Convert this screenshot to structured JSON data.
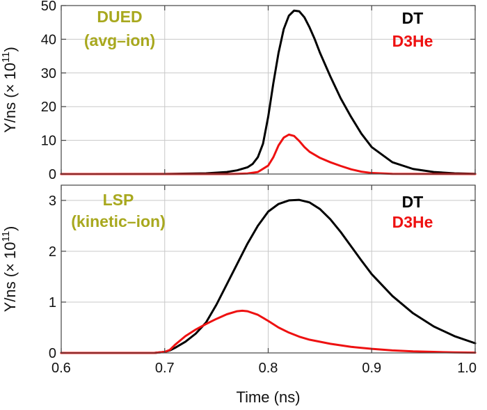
{
  "chart_data": [
    {
      "type": "line",
      "panel": "top",
      "xlabel": "",
      "ylabel": "Y/ns (× 10",
      "ylabel_exp": "11",
      "ylabel_close": ")",
      "xlim": [
        0.6,
        1.0
      ],
      "ylim": [
        0,
        50
      ],
      "xticks": [
        0.6,
        0.7,
        0.8,
        0.9,
        1.0
      ],
      "yticks": [
        0,
        10,
        20,
        30,
        40,
        50
      ],
      "ytick_labels": [
        "0",
        "10",
        "20",
        "30",
        "40",
        "50"
      ],
      "grid": true,
      "annotation": [
        "DUED",
        "(avg–ion)"
      ],
      "annotation_color": "#a8a81e",
      "legend_placement": "top-right",
      "series": [
        {
          "name": "DT",
          "color": "#000000",
          "x": [
            0.6,
            0.7,
            0.74,
            0.76,
            0.77,
            0.78,
            0.785,
            0.79,
            0.795,
            0.8,
            0.805,
            0.81,
            0.815,
            0.82,
            0.825,
            0.83,
            0.835,
            0.84,
            0.845,
            0.85,
            0.86,
            0.87,
            0.88,
            0.89,
            0.9,
            0.92,
            0.94,
            0.96,
            0.98,
            1.0
          ],
          "y": [
            0,
            0.02,
            0.2,
            0.6,
            1.1,
            2.0,
            3.0,
            5.0,
            9.0,
            17.0,
            27.0,
            36.0,
            43.0,
            47.0,
            48.5,
            48.3,
            46.5,
            43.5,
            40.0,
            36.0,
            29.0,
            22.5,
            17.0,
            12.0,
            8.0,
            3.5,
            1.5,
            0.6,
            0.2,
            0.05
          ]
        },
        {
          "name": "D3He",
          "color": "#ee1111",
          "x": [
            0.6,
            0.76,
            0.77,
            0.78,
            0.79,
            0.8,
            0.805,
            0.81,
            0.815,
            0.82,
            0.825,
            0.83,
            0.835,
            0.84,
            0.85,
            0.86,
            0.87,
            0.88,
            0.89,
            0.9,
            0.92,
            1.0
          ],
          "y": [
            0,
            0,
            0.05,
            0.15,
            0.6,
            2.5,
            5.0,
            8.5,
            10.8,
            11.7,
            11.3,
            9.8,
            8.0,
            6.6,
            4.8,
            3.5,
            2.4,
            1.4,
            0.7,
            0.3,
            0.05,
            0
          ]
        }
      ]
    },
    {
      "type": "line",
      "panel": "bottom",
      "xlabel": "Time (ns)",
      "ylabel": "Y/ns (× 10",
      "ylabel_exp": "11",
      "ylabel_close": ")",
      "xlim": [
        0.6,
        1.0
      ],
      "ylim": [
        0,
        3.3
      ],
      "xticks": [
        0.6,
        0.7,
        0.8,
        0.9,
        1.0
      ],
      "xtick_labels": [
        "0.6",
        "0.7",
        "0.8",
        "0.9",
        "1.0"
      ],
      "yticks": [
        0,
        1,
        2,
        3
      ],
      "ytick_labels": [
        "0",
        "1",
        "2",
        "3"
      ],
      "grid": true,
      "annotation": [
        "LSP",
        "(kinetic–ion)"
      ],
      "annotation_color": "#a8a81e",
      "legend_placement": "top-right",
      "series": [
        {
          "name": "DT",
          "color": "#000000",
          "x": [
            0.6,
            0.69,
            0.7,
            0.705,
            0.71,
            0.72,
            0.73,
            0.74,
            0.75,
            0.76,
            0.77,
            0.78,
            0.79,
            0.8,
            0.81,
            0.82,
            0.83,
            0.84,
            0.85,
            0.86,
            0.87,
            0.88,
            0.89,
            0.9,
            0.92,
            0.94,
            0.96,
            0.98,
            1.0
          ],
          "y": [
            0,
            0,
            0.02,
            0.05,
            0.1,
            0.22,
            0.38,
            0.6,
            0.95,
            1.35,
            1.75,
            2.15,
            2.5,
            2.78,
            2.93,
            3.0,
            3.01,
            2.96,
            2.83,
            2.63,
            2.38,
            2.1,
            1.82,
            1.55,
            1.12,
            0.78,
            0.52,
            0.33,
            0.19
          ]
        },
        {
          "name": "D3He",
          "color": "#ee1111",
          "x": [
            0.6,
            0.69,
            0.7,
            0.705,
            0.71,
            0.72,
            0.73,
            0.74,
            0.75,
            0.76,
            0.77,
            0.775,
            0.78,
            0.79,
            0.8,
            0.81,
            0.82,
            0.83,
            0.84,
            0.86,
            0.88,
            0.9,
            0.92,
            0.94,
            0.96,
            0.98,
            1.0
          ],
          "y": [
            0,
            0,
            0.02,
            0.06,
            0.16,
            0.33,
            0.46,
            0.57,
            0.67,
            0.76,
            0.82,
            0.83,
            0.82,
            0.75,
            0.63,
            0.5,
            0.4,
            0.32,
            0.26,
            0.18,
            0.12,
            0.08,
            0.05,
            0.03,
            0.02,
            0.01,
            0.005
          ]
        }
      ]
    }
  ]
}
